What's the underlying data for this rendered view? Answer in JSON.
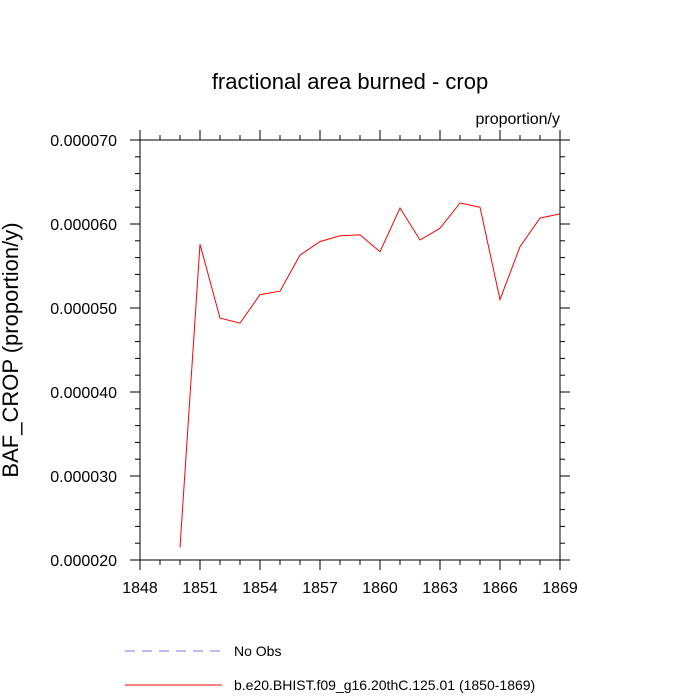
{
  "chart_data": {
    "type": "line",
    "title": "fractional area burned - crop",
    "units_label": "proportion/y",
    "ylabel": "BAF_CROP  (proportion/y)",
    "xlabel": "",
    "xlim": [
      1848,
      1869
    ],
    "ylim": [
      2e-05,
      7e-05
    ],
    "x_ticks": [
      1848,
      1851,
      1854,
      1857,
      1860,
      1863,
      1866,
      1869
    ],
    "x_tick_labels": [
      "1848",
      "1851",
      "1854",
      "1857",
      "1860",
      "1863",
      "1866",
      "1869"
    ],
    "y_ticks": [
      2e-05,
      3e-05,
      4e-05,
      5e-05,
      6e-05,
      7e-05
    ],
    "y_tick_labels": [
      "0.000020",
      "0.000030",
      "0.000040",
      "0.000050",
      "0.000060",
      "0.000070"
    ],
    "grid": false,
    "legend_position": "bottom",
    "series": [
      {
        "name": "No Obs",
        "color": "#7777ee",
        "style": "dashed",
        "x": [],
        "values": []
      },
      {
        "name": "b.e20.BHIST.f09_g16.20thC.125.01 (1850-1869)",
        "color": "#ff0000",
        "style": "solid",
        "x": [
          1850,
          1851,
          1852,
          1853,
          1854,
          1855,
          1856,
          1857,
          1858,
          1859,
          1860,
          1861,
          1862,
          1863,
          1864,
          1865,
          1866,
          1867,
          1868,
          1869
        ],
        "values": [
          2.15e-05,
          5.76e-05,
          4.88e-05,
          4.82e-05,
          5.16e-05,
          5.2e-05,
          5.63e-05,
          5.79e-05,
          5.86e-05,
          5.87e-05,
          5.67e-05,
          6.19e-05,
          5.81e-05,
          5.95e-05,
          6.25e-05,
          6.2e-05,
          5.1e-05,
          5.73e-05,
          6.07e-05,
          6.12e-05
        ]
      }
    ]
  }
}
